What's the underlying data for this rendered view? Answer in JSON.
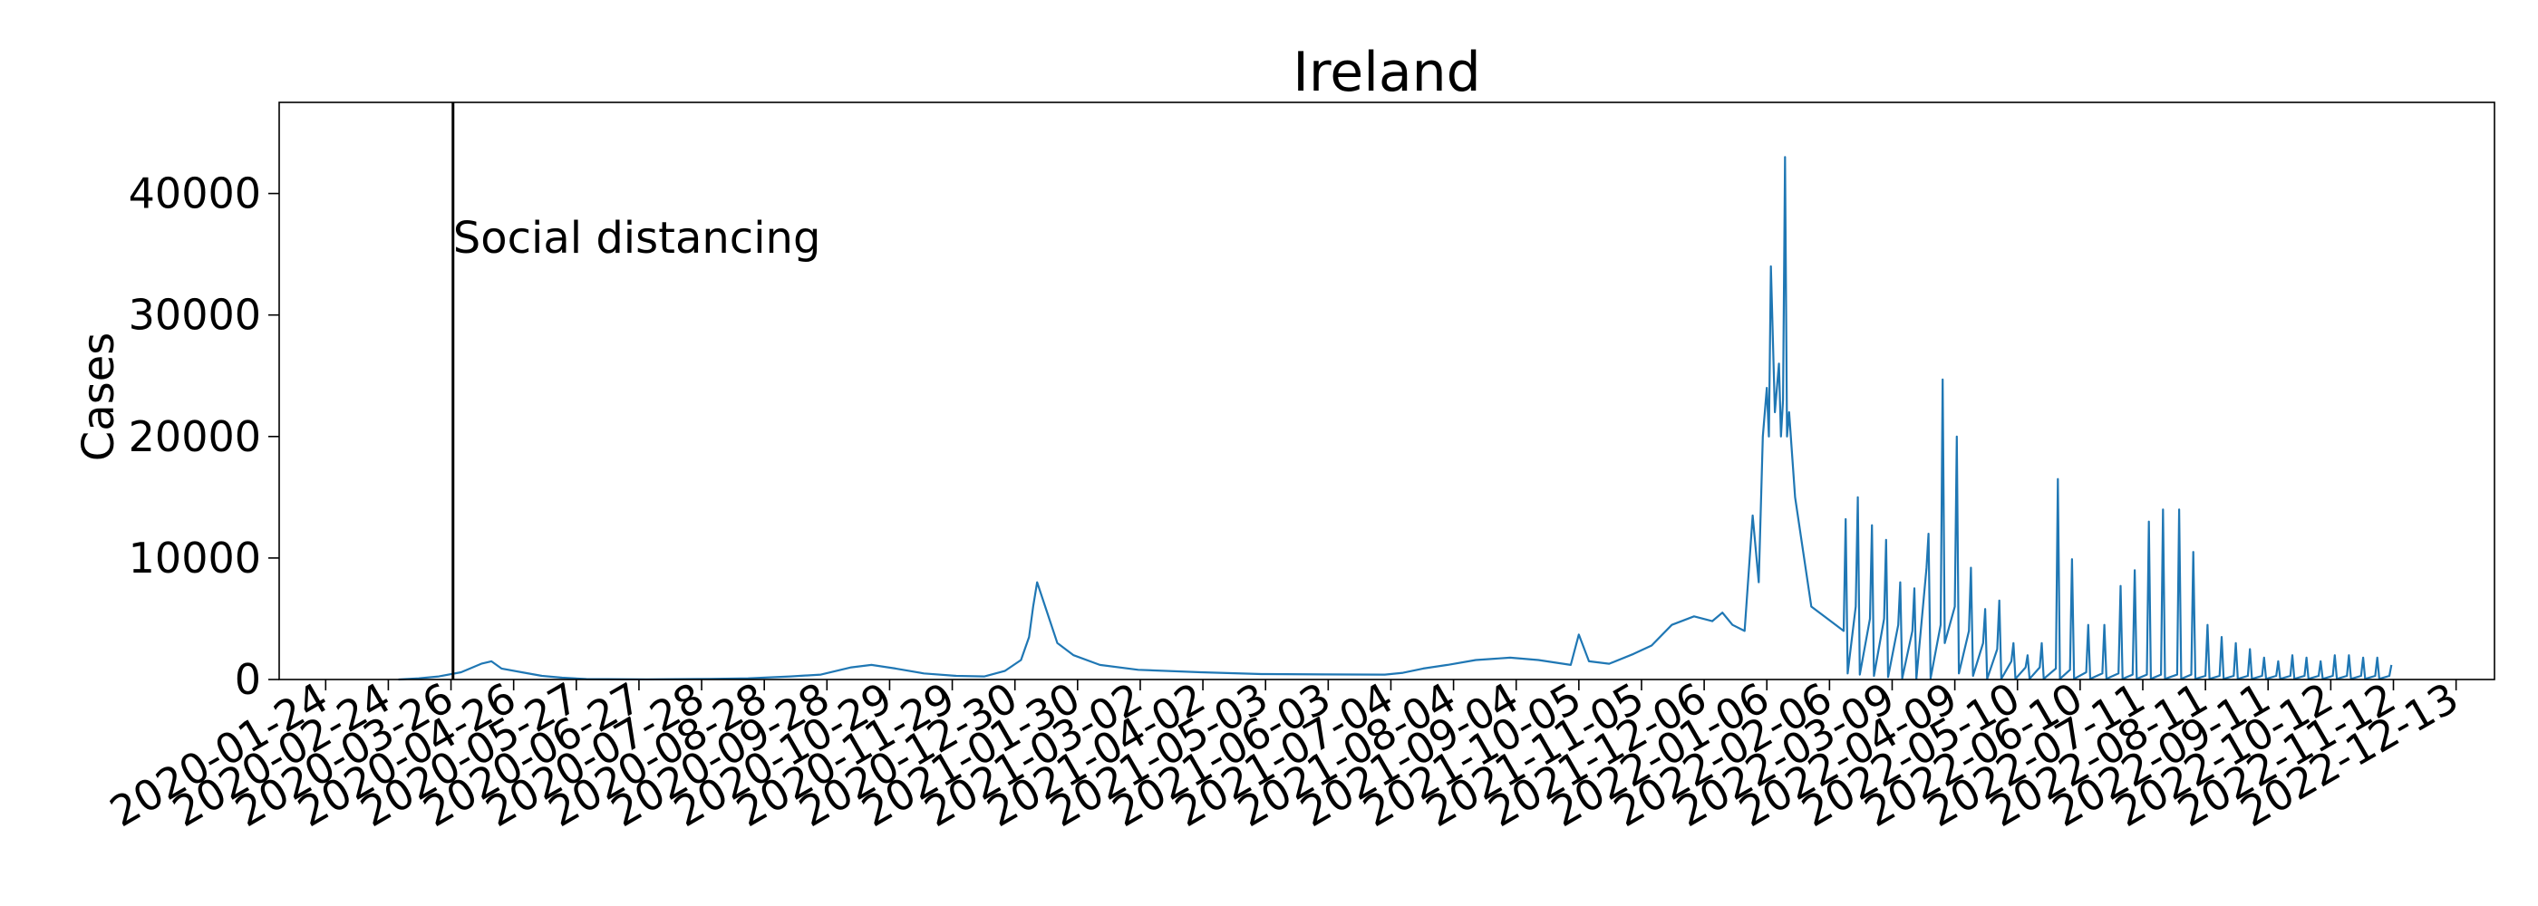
{
  "chart_data": {
    "type": "line",
    "title": "Ireland",
    "xlabel": "",
    "ylabel": "Cases",
    "ylim": [
      0,
      47500
    ],
    "xlim": [
      "2020-01-01",
      "2023-01-01"
    ],
    "yticks": [
      0,
      10000,
      20000,
      30000,
      40000
    ],
    "ytick_labels": [
      "0",
      "10000",
      "20000",
      "30000",
      "40000"
    ],
    "xtick_labels": [
      "2020-01-24",
      "2020-02-24",
      "2020-03-26",
      "2020-04-26",
      "2020-05-27",
      "2020-06-27",
      "2020-07-28",
      "2020-08-28",
      "2020-09-28",
      "2020-10-29",
      "2020-11-29",
      "2020-12-30",
      "2021-01-30",
      "2021-03-02",
      "2021-04-02",
      "2021-05-03",
      "2021-06-03",
      "2021-07-04",
      "2021-08-04",
      "2021-09-04",
      "2021-10-05",
      "2021-11-05",
      "2021-12-06",
      "2022-01-06",
      "2022-02-06",
      "2022-03-09",
      "2022-04-09",
      "2022-05-10",
      "2022-06-10",
      "2022-07-11",
      "2022-08-11",
      "2022-09-11",
      "2022-10-12",
      "2022-11-12",
      "2022-12-13"
    ],
    "grid": false,
    "line_color": "#1f77b4",
    "series": [
      {
        "name": "",
        "x": [
          "2020-02-29",
          "2020-03-10",
          "2020-03-20",
          "2020-03-31",
          "2020-04-10",
          "2020-04-15",
          "2020-04-20",
          "2020-04-30",
          "2020-05-10",
          "2020-05-20",
          "2020-06-01",
          "2020-07-01",
          "2020-08-01",
          "2020-08-20",
          "2020-09-10",
          "2020-09-25",
          "2020-10-10",
          "2020-10-20",
          "2020-11-01",
          "2020-11-15",
          "2020-12-01",
          "2020-12-15",
          "2020-12-25",
          "2021-01-02",
          "2021-01-06",
          "2021-01-08",
          "2021-01-10",
          "2021-01-14",
          "2021-01-20",
          "2021-01-28",
          "2021-02-10",
          "2021-03-01",
          "2021-04-01",
          "2021-05-01",
          "2021-06-01",
          "2021-07-01",
          "2021-07-10",
          "2021-07-20",
          "2021-08-01",
          "2021-08-15",
          "2021-09-01",
          "2021-09-15",
          "2021-10-01",
          "2021-10-05",
          "2021-10-10",
          "2021-10-20",
          "2021-11-01",
          "2021-11-10",
          "2021-11-20",
          "2021-12-01",
          "2021-12-10",
          "2021-12-15",
          "2021-12-20",
          "2021-12-26",
          "2021-12-30",
          "2022-01-02",
          "2022-01-04",
          "2022-01-06",
          "2022-01-07",
          "2022-01-08",
          "2022-01-10",
          "2022-01-12",
          "2022-01-13",
          "2022-01-14",
          "2022-01-15",
          "2022-01-16",
          "2022-01-17",
          "2022-01-20",
          "2022-01-28",
          "2022-02-05",
          "2022-02-13",
          "2022-02-14",
          "2022-02-15",
          "2022-02-19",
          "2022-02-20",
          "2022-02-21",
          "2022-02-26",
          "2022-02-27",
          "2022-02-28",
          "2022-03-05",
          "2022-03-06",
          "2022-03-07",
          "2022-03-12",
          "2022-03-13",
          "2022-03-14",
          "2022-03-19",
          "2022-03-20",
          "2022-03-21",
          "2022-03-26",
          "2022-03-27",
          "2022-03-28",
          "2022-04-02",
          "2022-04-03",
          "2022-04-04",
          "2022-04-09",
          "2022-04-10",
          "2022-04-11",
          "2022-04-16",
          "2022-04-17",
          "2022-04-18",
          "2022-04-23",
          "2022-04-24",
          "2022-04-25",
          "2022-04-30",
          "2022-05-01",
          "2022-05-02",
          "2022-05-07",
          "2022-05-08",
          "2022-05-09",
          "2022-05-14",
          "2022-05-15",
          "2022-05-16",
          "2022-05-21",
          "2022-05-22",
          "2022-05-23",
          "2022-05-29",
          "2022-05-30",
          "2022-05-31",
          "2022-06-05",
          "2022-06-06",
          "2022-06-07",
          "2022-06-13",
          "2022-06-14",
          "2022-06-15",
          "2022-06-21",
          "2022-06-22",
          "2022-06-23",
          "2022-06-29",
          "2022-06-30",
          "2022-07-01",
          "2022-07-06",
          "2022-07-07",
          "2022-07-08",
          "2022-07-13",
          "2022-07-14",
          "2022-07-15",
          "2022-07-20",
          "2022-07-21",
          "2022-07-22",
          "2022-07-28",
          "2022-07-29",
          "2022-07-30",
          "2022-08-04",
          "2022-08-05",
          "2022-08-06",
          "2022-08-11",
          "2022-08-12",
          "2022-08-13",
          "2022-08-18",
          "2022-08-19",
          "2022-08-20",
          "2022-08-25",
          "2022-08-26",
          "2022-08-27",
          "2022-09-01",
          "2022-09-02",
          "2022-09-03",
          "2022-09-08",
          "2022-09-09",
          "2022-09-10",
          "2022-09-15",
          "2022-09-16",
          "2022-09-17",
          "2022-09-22",
          "2022-09-23",
          "2022-09-24",
          "2022-09-29",
          "2022-09-30",
          "2022-10-01",
          "2022-10-06",
          "2022-10-07",
          "2022-10-08",
          "2022-10-13",
          "2022-10-14",
          "2022-10-15",
          "2022-10-20",
          "2022-10-21",
          "2022-10-22",
          "2022-10-27",
          "2022-10-28",
          "2022-10-29",
          "2022-11-03",
          "2022-11-04",
          "2022-11-05",
          "2022-11-10",
          "2022-11-11"
        ],
        "y": [
          1,
          100,
          250,
          600,
          1300,
          1500,
          900,
          600,
          300,
          150,
          40,
          15,
          50,
          100,
          250,
          400,
          1000,
          1200,
          900,
          500,
          300,
          250,
          700,
          1600,
          3500,
          6000,
          8000,
          6000,
          3000,
          2000,
          1200,
          800,
          600,
          450,
          420,
          400,
          550,
          900,
          1200,
          1600,
          1800,
          1600,
          1200,
          3700,
          1500,
          1300,
          2100,
          2800,
          4500,
          5200,
          4800,
          5500,
          4500,
          4000,
          13500,
          8000,
          20000,
          24000,
          20000,
          34000,
          22000,
          26000,
          20000,
          23000,
          43000,
          20000,
          22000,
          15000,
          6000,
          5000,
          4000,
          13200,
          500,
          6000,
          15000,
          400,
          5000,
          12700,
          300,
          5000,
          11500,
          200,
          4500,
          8000,
          100,
          4000,
          7500,
          50,
          9200,
          12000,
          100,
          4500,
          24700,
          3000,
          6000,
          20000,
          500,
          4000,
          9200,
          300,
          3000,
          5800,
          50,
          2500,
          6500,
          50,
          1500,
          3000,
          50,
          1000,
          2000,
          50,
          1000,
          3000,
          50,
          900,
          16500,
          50,
          800,
          9900,
          50,
          600,
          4500,
          50,
          500,
          4500,
          50,
          500,
          7700,
          50,
          400,
          9000,
          50,
          400,
          13000,
          50,
          400,
          14000,
          50,
          400,
          14000,
          50,
          400,
          10500,
          50,
          300,
          4500,
          50,
          300,
          3500,
          50,
          300,
          3000,
          50,
          300,
          2500,
          50,
          300,
          1800,
          50,
          300,
          1500,
          50,
          300,
          2000,
          50,
          300,
          1800,
          50,
          300,
          1500,
          50,
          300,
          2000,
          50,
          300,
          2000,
          50,
          300,
          1800,
          50,
          300,
          1800,
          50,
          300,
          1200
        ]
      }
    ],
    "annotations": [
      {
        "date": "2020-03-27",
        "label": "Social distancing"
      }
    ]
  }
}
